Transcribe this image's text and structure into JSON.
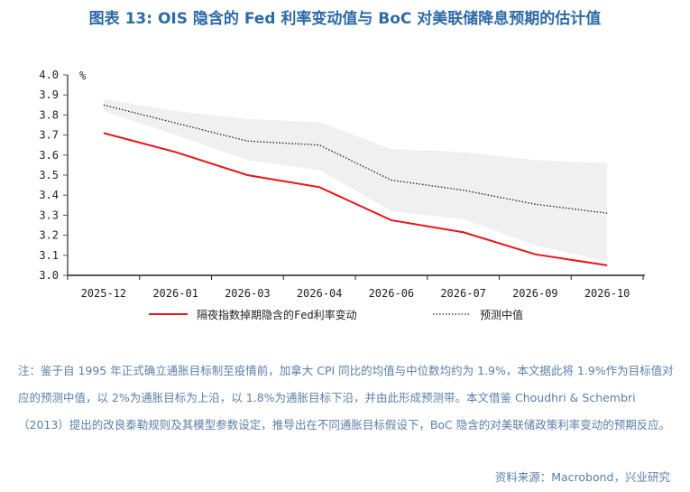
{
  "title": "图表 13: OIS 隐含的 Fed 利率变动值与 BoC 对美联储降息预期的估计值",
  "chart_data": {
    "type": "line",
    "ylabel": "%",
    "ylim": [
      3.0,
      4.0
    ],
    "yticks": [
      "3.0",
      "3.1",
      "3.2",
      "3.3",
      "3.4",
      "3.5",
      "3.6",
      "3.7",
      "3.8",
      "3.9",
      "4.0"
    ],
    "categories": [
      "2025-12",
      "2026-01",
      "2026-03",
      "2026-04",
      "2026-06",
      "2026-07",
      "2026-09",
      "2026-10"
    ],
    "series": [
      {
        "name": "隔夜指数掉期隐含的Fed利率变动",
        "style": "solid",
        "color": "#e8141b",
        "values": [
          3.71,
          3.615,
          3.5,
          3.44,
          3.275,
          3.215,
          3.105,
          3.05
        ]
      },
      {
        "name": "预测中值",
        "style": "dotted",
        "color": "#222222",
        "values": [
          3.85,
          3.76,
          3.67,
          3.65,
          3.475,
          3.425,
          3.355,
          3.31
        ]
      }
    ],
    "band": {
      "color": "#f0f0f0",
      "upper": [
        3.88,
        3.82,
        3.78,
        3.765,
        3.63,
        3.615,
        3.575,
        3.56
      ],
      "lower": [
        3.82,
        3.7,
        3.575,
        3.525,
        3.32,
        3.28,
        3.15,
        3.07
      ]
    },
    "legend": "bottom",
    "grid": false
  },
  "note": "注：鉴于自 1995 年正式确立通胀目标制至疫情前，加拿大 CPI 同比的均值与中位数均约为 1.9%，本文据此将 1.9%作为目标值对应的预测中值，以 2%为通胀目标为上沿，以 1.8%为通胀目标下沿，并由此形成预测带。本文借鉴 Choudhri & Schembri（2013）提出的改良泰勒规则及其模型参数设定，推导出在不同通胀目标假设下，BoC 隐含的对美联储政策利率变动的预期反应。",
  "source": "资料来源：Macrobond，兴业研究"
}
